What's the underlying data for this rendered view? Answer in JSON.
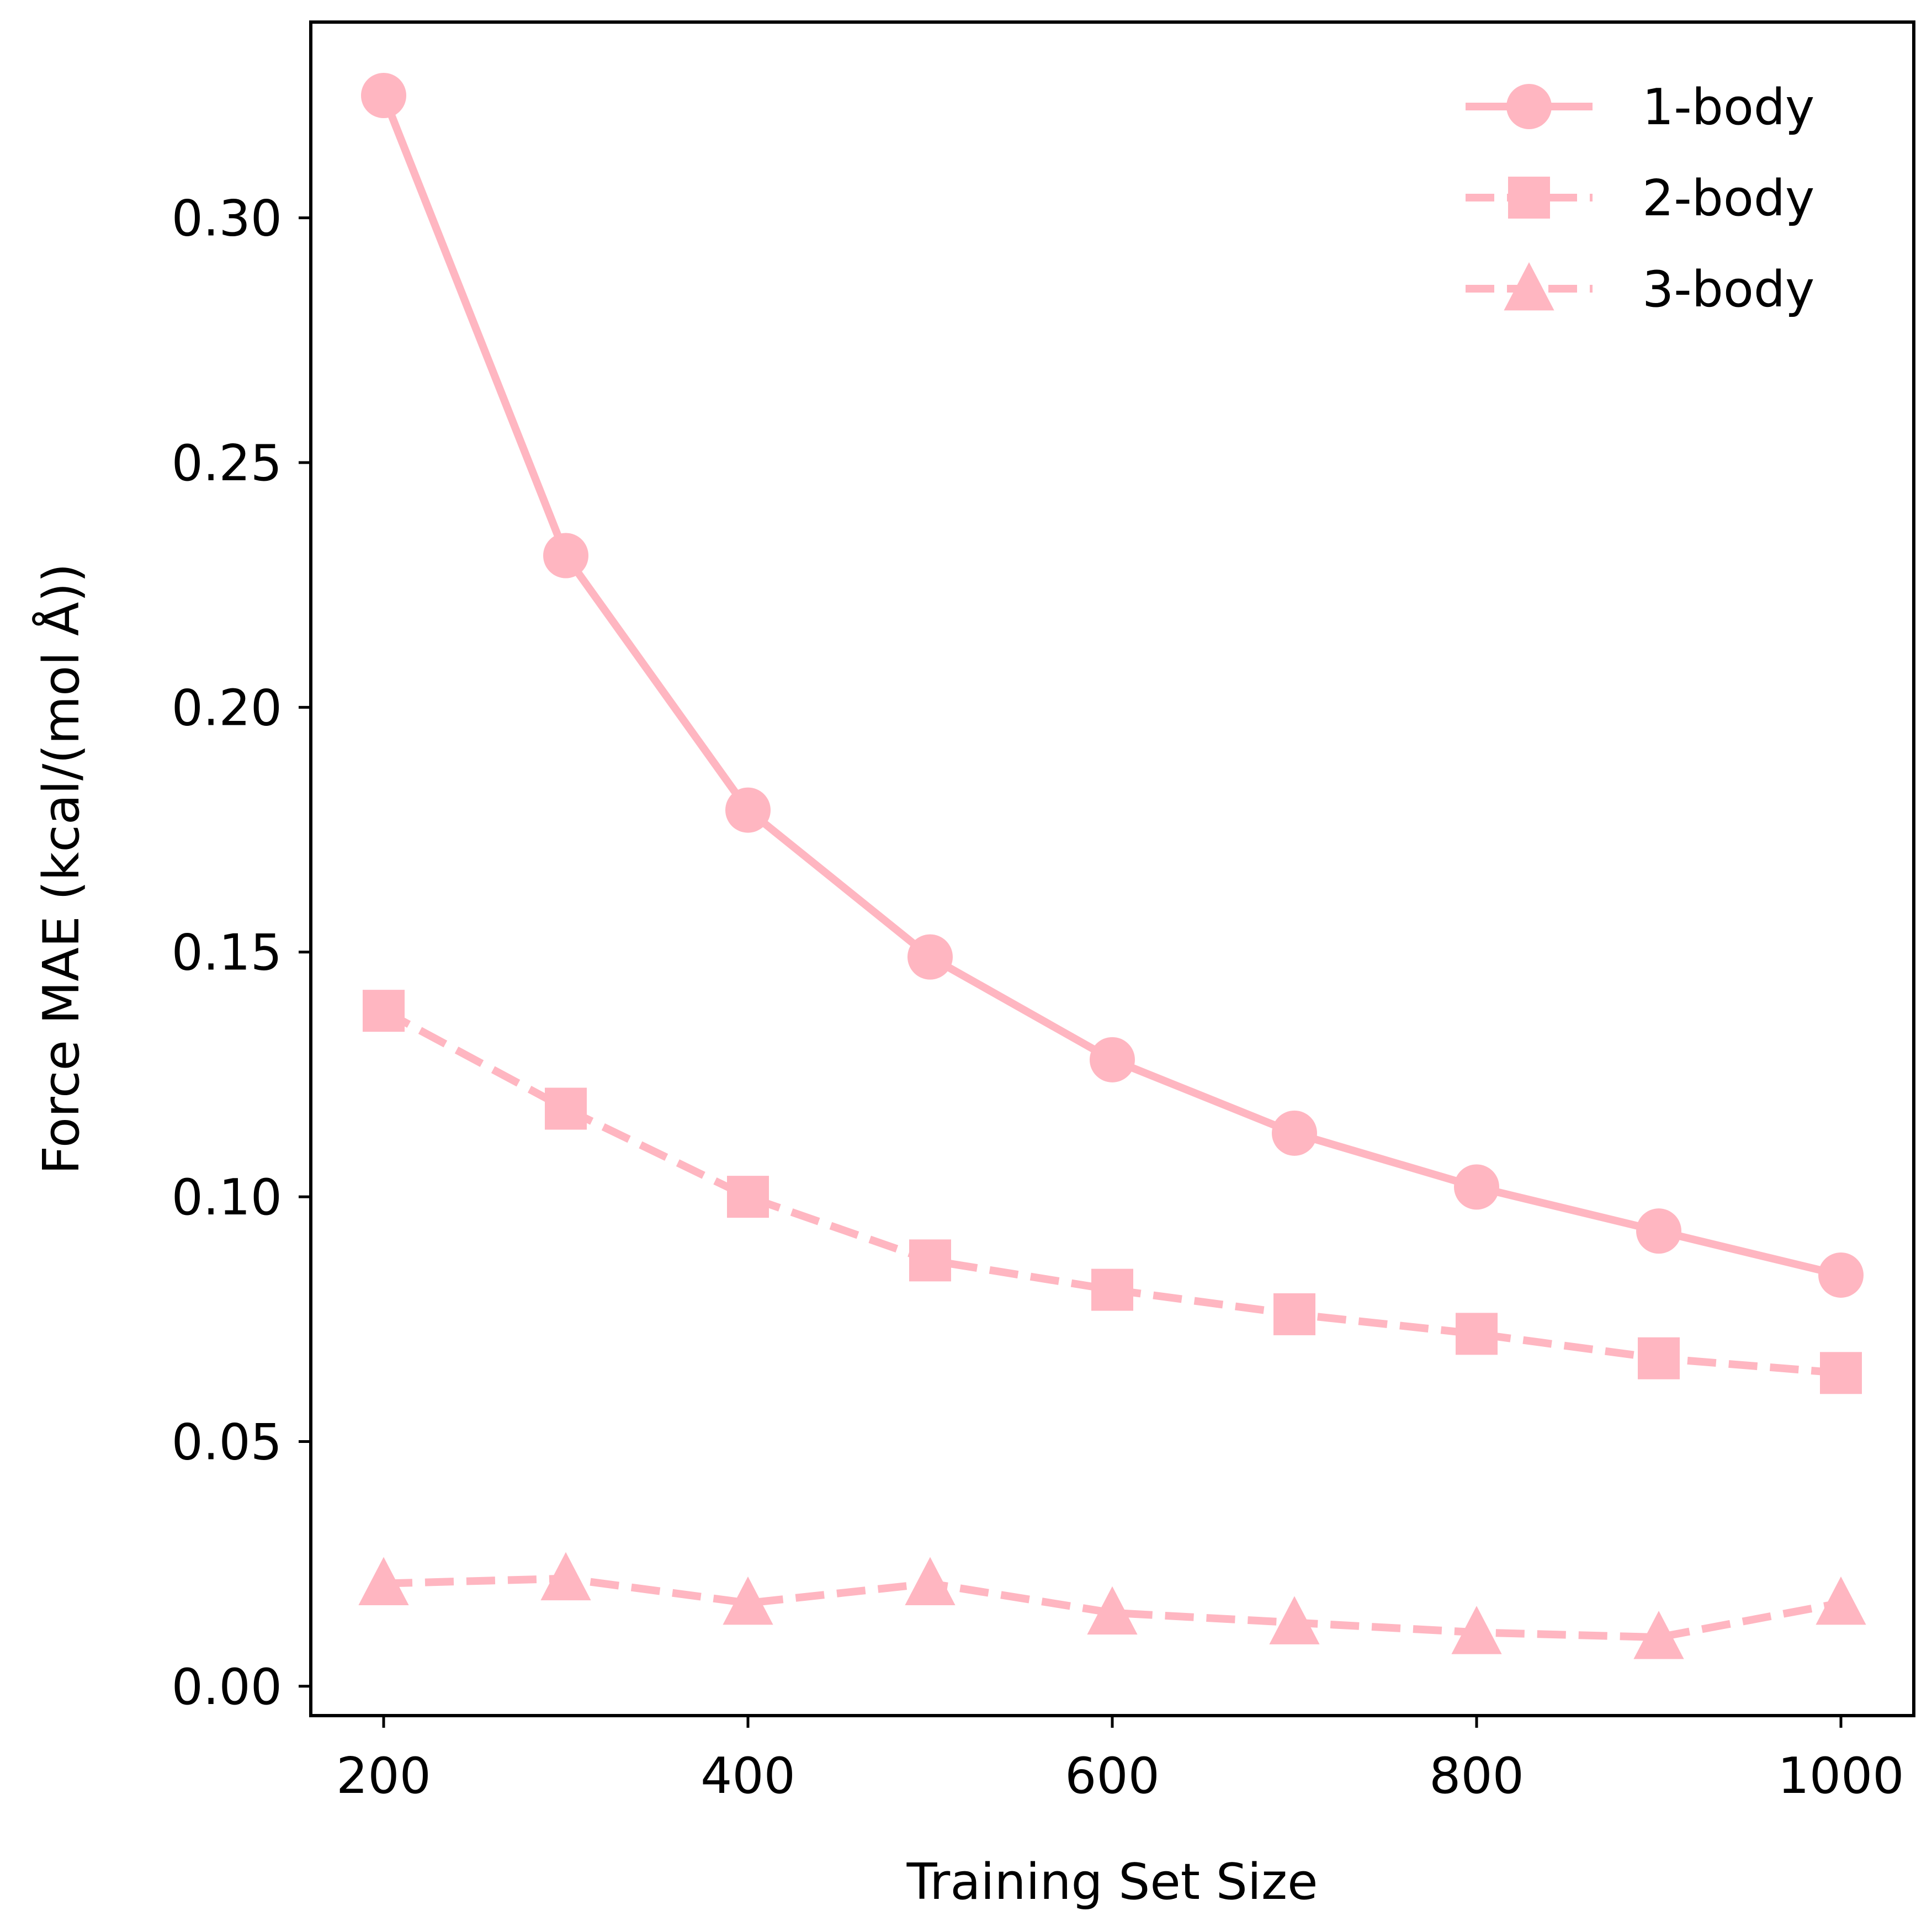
{
  "chart_data": {
    "type": "line",
    "xlabel": "Training Set Size",
    "ylabel": "Force MAE (kcal/(mol Å))",
    "x": [
      200,
      300,
      400,
      500,
      600,
      700,
      800,
      900,
      1000
    ],
    "xlim": [
      160,
      1040
    ],
    "ylim": [
      -0.006,
      0.34
    ],
    "xticks": [
      200,
      400,
      600,
      800,
      1000
    ],
    "yticks": [
      0.0,
      0.05,
      0.1,
      0.15,
      0.2,
      0.25,
      0.3
    ],
    "ytick_labels": [
      "0.00",
      "0.05",
      "0.10",
      "0.15",
      "0.20",
      "0.25",
      "0.30"
    ],
    "xtick_labels": [
      "200",
      "400",
      "600",
      "800",
      "1000"
    ],
    "grid": false,
    "legend_position": "top-right",
    "series": [
      {
        "name": "1-body",
        "values": [
          0.325,
          0.231,
          0.179,
          0.149,
          0.128,
          0.113,
          0.102,
          0.093,
          0.084
        ],
        "color": "#ffb6c1",
        "linestyle": "solid",
        "marker": "circle"
      },
      {
        "name": "2-body",
        "values": [
          0.138,
          0.118,
          0.1,
          0.087,
          0.081,
          0.076,
          0.072,
          0.067,
          0.064
        ],
        "color": "#ffb6c1",
        "linestyle": "dashed",
        "marker": "square"
      },
      {
        "name": "3-body",
        "values": [
          0.021,
          0.022,
          0.017,
          0.021,
          0.015,
          0.013,
          0.011,
          0.01,
          0.017
        ],
        "color": "#ffb6c1",
        "linestyle": "dashed",
        "marker": "triangle"
      }
    ]
  }
}
